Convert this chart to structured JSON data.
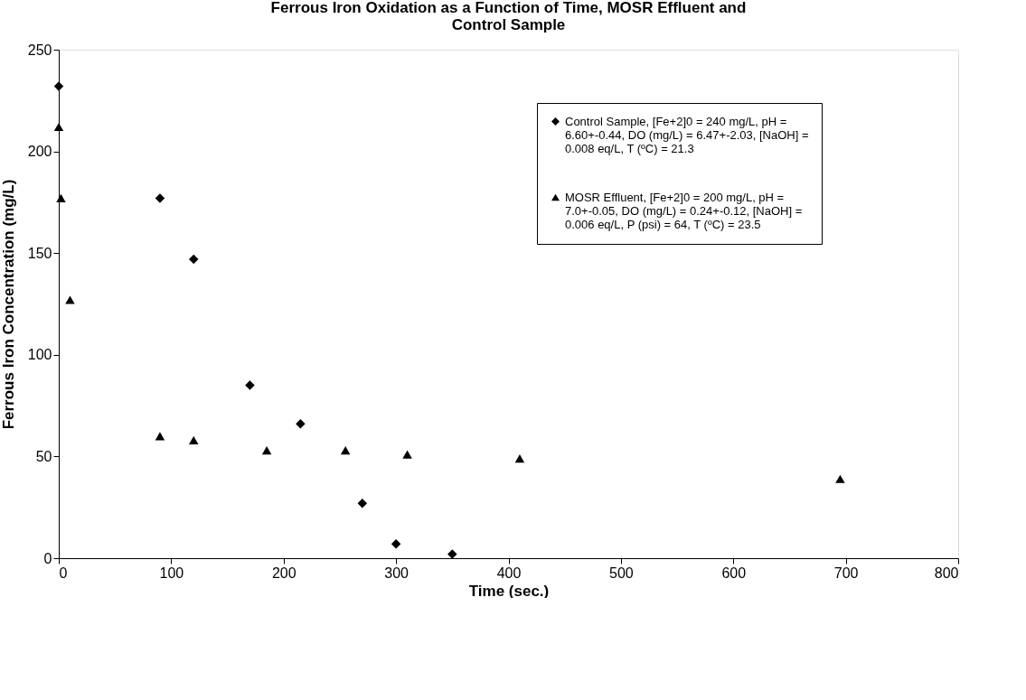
{
  "chart_data": {
    "type": "scatter",
    "title": "Ferrous Iron Oxidation as a Function of Time, MOSR Effluent and Control Sample",
    "xlabel": "Time (sec.)",
    "ylabel": "Ferrous Iron Concentration (mg/L)",
    "xlim": [
      0,
      800
    ],
    "xticks": [
      0,
      100,
      200,
      300,
      400,
      500,
      600,
      700,
      800
    ],
    "ylim": [
      0,
      250
    ],
    "yticks": [
      0,
      50,
      100,
      150,
      200,
      250
    ],
    "grid": false,
    "legend": "top right",
    "series": [
      {
        "name": "Control Sample, [Fe+2]0 = 240 mg/L, pH = 6.60+-0.44, DO (mg/L) = 6.47+-2.03, [NaOH] = 0.008 eq/L, T (ºC) = 21.3",
        "color": "#000000",
        "marker": "diamond",
        "x": [
          0,
          90,
          120,
          170,
          215,
          270,
          300,
          350
        ],
        "values": [
          232,
          177,
          147,
          85,
          66,
          27,
          7,
          2
        ]
      },
      {
        "name": "MOSR Effluent, [Fe+2]0 = 200 mg/L, pH = 7.0+-0.05, DO (mg/L) = 0.24+-0.12, [NaOH] = 0.006 eq/L, P (psi) = 64, T (ºC) = 23.5",
        "color": "#000000",
        "marker": "triangle",
        "x": [
          0,
          2,
          10,
          90,
          120,
          185,
          255,
          310,
          410,
          695
        ],
        "values": [
          212,
          177,
          127,
          60,
          58,
          53,
          53,
          51,
          49,
          39
        ]
      }
    ]
  }
}
